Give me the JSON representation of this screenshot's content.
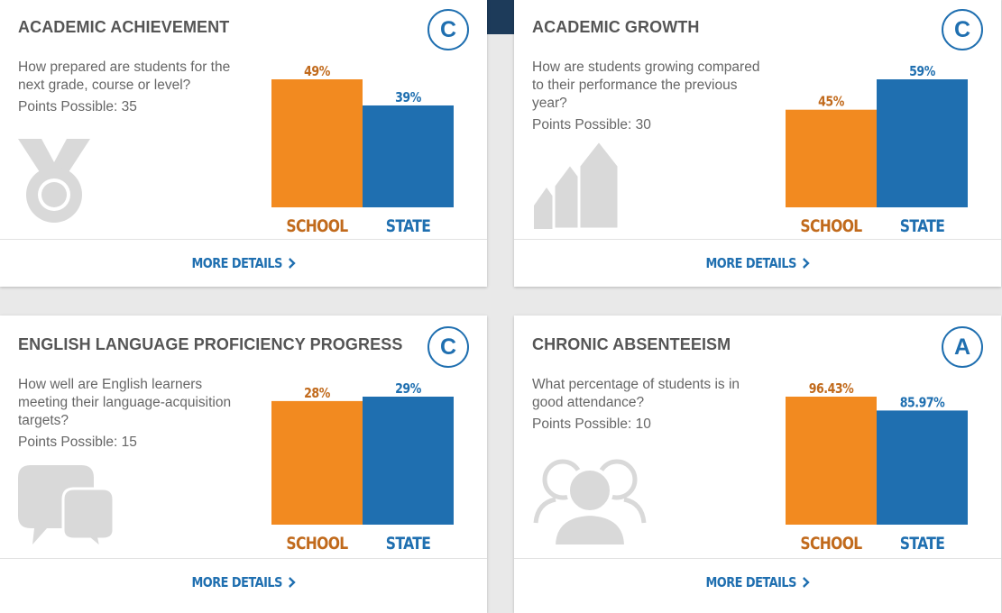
{
  "colors": {
    "school": "#f28a20",
    "state": "#1f6fb0",
    "school_text": "#c16a1c",
    "state_text": "#1f6fb0"
  },
  "more_details_label": "MORE DETAILS",
  "cards": [
    {
      "title": "ACADEMIC ACHIEVEMENT",
      "grade": "C",
      "question": "How prepared are students for the next grade, course or level?",
      "points": "Points Possible: 35",
      "icon": "medal-icon",
      "school_label": "49%",
      "state_label": "39%"
    },
    {
      "title": "ACADEMIC GROWTH",
      "grade": "C",
      "question": "How are students growing compared to their performance the previous year?",
      "points": "Points Possible: 30",
      "icon": "growth-arrows-icon",
      "school_label": "45%",
      "state_label": "59%"
    },
    {
      "title": "ENGLISH LANGUAGE PROFICIENCY PROGRESS",
      "grade": "C",
      "question": "How well are English learners meeting their language-acquisition targets?",
      "points": "Points Possible: 15",
      "icon": "speech-bubbles-icon",
      "school_label": "28%",
      "state_label": "29%"
    },
    {
      "title": "CHRONIC ABSENTEEISM",
      "grade": "A",
      "question": "What percentage of students is in good attendance?",
      "points": "Points Possible: 10",
      "icon": "people-icon",
      "school_label": "96.43%",
      "state_label": "85.97%"
    }
  ],
  "chart_data": [
    {
      "type": "bar",
      "categories": [
        "SCHOOL",
        "STATE"
      ],
      "values": [
        49,
        39
      ],
      "title": "",
      "xlabel": "",
      "ylabel": "",
      "legend": "none",
      "grid": false
    },
    {
      "type": "bar",
      "categories": [
        "SCHOOL",
        "STATE"
      ],
      "values": [
        45,
        59
      ],
      "title": "",
      "xlabel": "",
      "ylabel": "",
      "legend": "none",
      "grid": false
    },
    {
      "type": "bar",
      "categories": [
        "SCHOOL",
        "STATE"
      ],
      "values": [
        28,
        29
      ],
      "title": "",
      "xlabel": "",
      "ylabel": "",
      "legend": "none",
      "grid": false
    },
    {
      "type": "bar",
      "categories": [
        "SCHOOL",
        "STATE"
      ],
      "values": [
        96.43,
        85.97
      ],
      "title": "",
      "xlabel": "",
      "ylabel": "",
      "legend": "none",
      "grid": false
    }
  ]
}
